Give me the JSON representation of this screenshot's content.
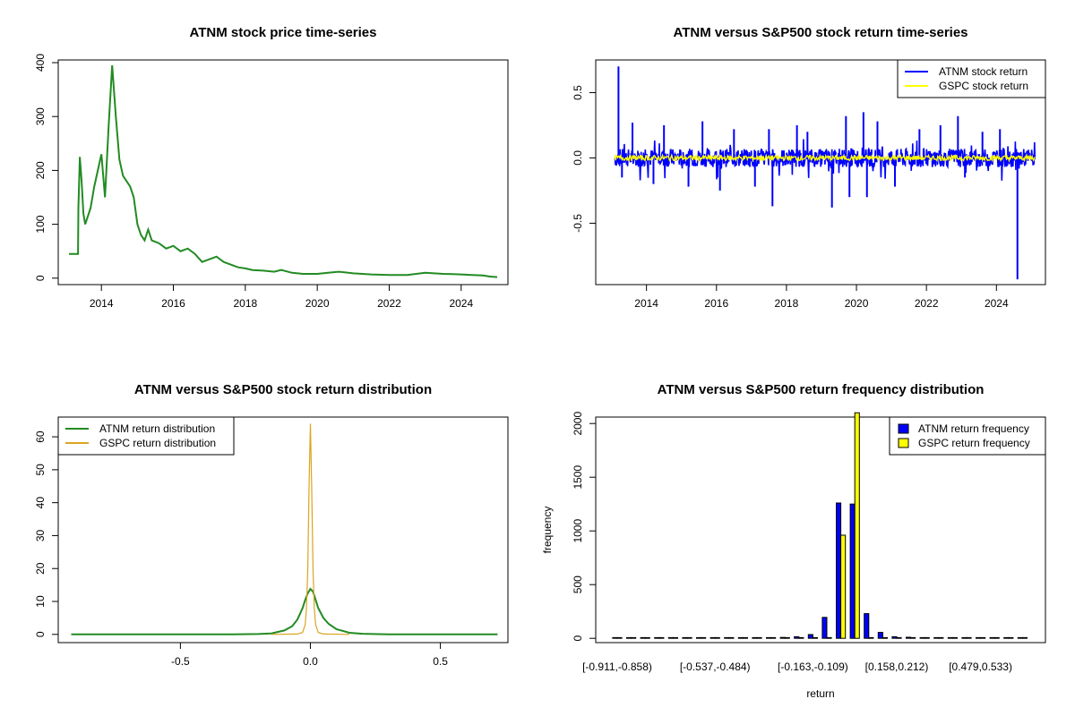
{
  "chart_data": [
    {
      "id": "price",
      "type": "line",
      "title": "ATNM stock price time-series",
      "xlabel": "",
      "ylabel": "",
      "xlim": [
        2012.8,
        2025.3
      ],
      "ylim": [
        -12,
        405
      ],
      "x_ticks": [
        2014,
        2016,
        2018,
        2020,
        2022,
        2024
      ],
      "x_tick_labels": [
        "2014",
        "2016",
        "2018",
        "2020",
        "2022",
        "2024"
      ],
      "y_ticks": [
        0,
        100,
        200,
        300,
        400
      ],
      "y_tick_labels": [
        "0",
        "100",
        "200",
        "300",
        "400"
      ],
      "grid": false,
      "series": [
        {
          "color": "#228B22",
          "x": [
            2013.1,
            2013.35,
            2013.36,
            2013.4,
            2013.45,
            2013.5,
            2013.55,
            2013.6,
            2013.7,
            2013.8,
            2013.9,
            2014.0,
            2014.1,
            2014.2,
            2014.3,
            2014.4,
            2014.5,
            2014.6,
            2014.7,
            2014.8,
            2014.9,
            2015.0,
            2015.1,
            2015.2,
            2015.3,
            2015.4,
            2015.6,
            2015.8,
            2016.0,
            2016.2,
            2016.4,
            2016.6,
            2016.8,
            2017.0,
            2017.2,
            2017.4,
            2017.6,
            2017.8,
            2018.0,
            2018.2,
            2018.5,
            2018.8,
            2019.0,
            2019.3,
            2019.6,
            2020.0,
            2020.3,
            2020.6,
            2021.0,
            2021.5,
            2022.0,
            2022.5,
            2023.0,
            2023.5,
            2024.0,
            2024.3,
            2024.6,
            2024.8,
            2025.0
          ],
          "y": [
            45,
            45,
            130,
            225,
            180,
            120,
            100,
            110,
            130,
            170,
            200,
            230,
            150,
            280,
            395,
            300,
            220,
            190,
            180,
            170,
            150,
            100,
            80,
            70,
            90,
            70,
            65,
            55,
            60,
            50,
            55,
            45,
            30,
            35,
            40,
            30,
            25,
            20,
            18,
            15,
            14,
            12,
            15,
            10,
            8,
            8,
            10,
            12,
            9,
            7,
            6,
            6,
            10,
            8,
            7,
            6,
            5,
            3,
            2
          ]
        }
      ]
    },
    {
      "id": "returns",
      "type": "line",
      "title": "ATNM versus S&P500 stock return time-series",
      "xlabel": "",
      "ylabel": "",
      "xlim": [
        2012.55,
        2025.4
      ],
      "ylim": [
        -0.97,
        0.75
      ],
      "x_ticks": [
        2014,
        2016,
        2018,
        2020,
        2022,
        2024
      ],
      "x_tick_labels": [
        "2014",
        "2016",
        "2018",
        "2020",
        "2022",
        "2024"
      ],
      "y_ticks": [
        -0.5,
        0.0,
        0.5
      ],
      "y_tick_labels": [
        "-0.5",
        "0.0",
        "0.5"
      ],
      "grid": false,
      "legend_position": "top-right",
      "series": [
        {
          "name": "ATNM stock return",
          "color": "#0000FF",
          "spikes_x": [
            2013.2,
            2013.3,
            2013.6,
            2014.2,
            2014.5,
            2015.2,
            2015.6,
            2016.1,
            2016.5,
            2017.1,
            2017.5,
            2017.6,
            2018.3,
            2018.6,
            2019.3,
            2019.7,
            2019.8,
            2020.2,
            2020.3,
            2020.6,
            2021.1,
            2021.8,
            2022.4,
            2022.9,
            2023.1,
            2023.6,
            2024.1,
            2024.6
          ],
          "spikes_y": [
            0.7,
            -0.15,
            0.27,
            -0.2,
            0.25,
            -0.22,
            0.28,
            -0.25,
            0.22,
            -0.22,
            0.22,
            -0.37,
            0.25,
            0.2,
            -0.38,
            0.32,
            -0.3,
            0.35,
            -0.3,
            0.28,
            -0.22,
            0.22,
            0.25,
            0.32,
            -0.15,
            0.2,
            0.22,
            -0.93
          ],
          "band": 0.07
        },
        {
          "name": "GSPC stock return",
          "color": "#FFFF00",
          "band": 0.02
        }
      ]
    },
    {
      "id": "density",
      "type": "line",
      "title": "ATNM versus S&P500 stock return distribution",
      "xlabel": "",
      "ylabel": "",
      "xlim": [
        -0.97,
        0.76
      ],
      "ylim": [
        -2.5,
        66
      ],
      "x_ticks": [
        -0.5,
        0.0,
        0.5
      ],
      "x_tick_labels": [
        "-0.5",
        "0.0",
        "0.5"
      ],
      "y_ticks": [
        0,
        10,
        20,
        30,
        40,
        50,
        60
      ],
      "y_tick_labels": [
        "0",
        "10",
        "20",
        "30",
        "40",
        "50",
        "60"
      ],
      "grid": false,
      "legend_position": "top-left",
      "series": [
        {
          "name": "ATNM return distribution",
          "color": "#228B22",
          "x": [
            -0.92,
            -0.3,
            -0.2,
            -0.15,
            -0.1,
            -0.07,
            -0.05,
            -0.03,
            -0.02,
            -0.01,
            0.0,
            0.01,
            0.02,
            0.03,
            0.05,
            0.07,
            0.1,
            0.15,
            0.2,
            0.3,
            0.72
          ],
          "y": [
            0,
            0,
            0.1,
            0.3,
            1.2,
            2.5,
            4.5,
            8.0,
            10.5,
            12.5,
            13.8,
            13.0,
            10.5,
            8.0,
            5.0,
            3.2,
            1.6,
            0.5,
            0.2,
            0,
            0
          ]
        },
        {
          "name": "GSPC return distribution",
          "color": "#DAA520",
          "x": [
            -0.15,
            -0.05,
            -0.03,
            -0.02,
            -0.015,
            -0.01,
            -0.005,
            0.0,
            0.005,
            0.01,
            0.015,
            0.02,
            0.03,
            0.05,
            0.15
          ],
          "y": [
            0,
            0.1,
            0.6,
            3.0,
            8.0,
            20.0,
            45.0,
            64.0,
            45.0,
            20.0,
            8.0,
            3.0,
            0.6,
            0.1,
            0
          ]
        }
      ]
    },
    {
      "id": "frequency",
      "type": "bar",
      "title": "ATNM versus S&P500 return frequency distribution",
      "xlabel": "return",
      "ylabel": "frequency",
      "ylim": [
        0,
        2060
      ],
      "y_ticks": [
        0,
        500,
        1000,
        1500,
        2000
      ],
      "y_tick_labels": [
        "0",
        "500",
        "1000",
        "1500",
        "2000"
      ],
      "category_tick_labels": [
        "[-0.911,-0.858)",
        "[-0.537,-0.484)",
        "[-0.163,-0.109)",
        "[0.158,0.212)",
        "[0.479,0.533)"
      ],
      "category_tick_index": [
        0,
        7,
        14,
        20,
        26
      ],
      "category_count": 30,
      "legend_position": "top-right",
      "series": [
        {
          "name": "ATNM return frequency",
          "color": "#0000FF",
          "values": [
            2,
            0,
            0,
            0,
            0,
            0,
            0,
            0,
            0,
            0,
            1,
            3,
            8,
            15,
            35,
            195,
            1260,
            1250,
            230,
            55,
            15,
            10,
            5,
            4,
            3,
            2,
            1,
            0,
            0,
            0
          ]
        },
        {
          "name": "GSPC return frequency",
          "color": "#FFFF00",
          "values": [
            0,
            0,
            0,
            0,
            0,
            0,
            0,
            0,
            0,
            0,
            0,
            0,
            0,
            0,
            0,
            0,
            960,
            2100,
            0,
            0,
            0,
            0,
            0,
            0,
            0,
            0,
            0,
            0,
            0,
            0
          ]
        }
      ]
    }
  ]
}
